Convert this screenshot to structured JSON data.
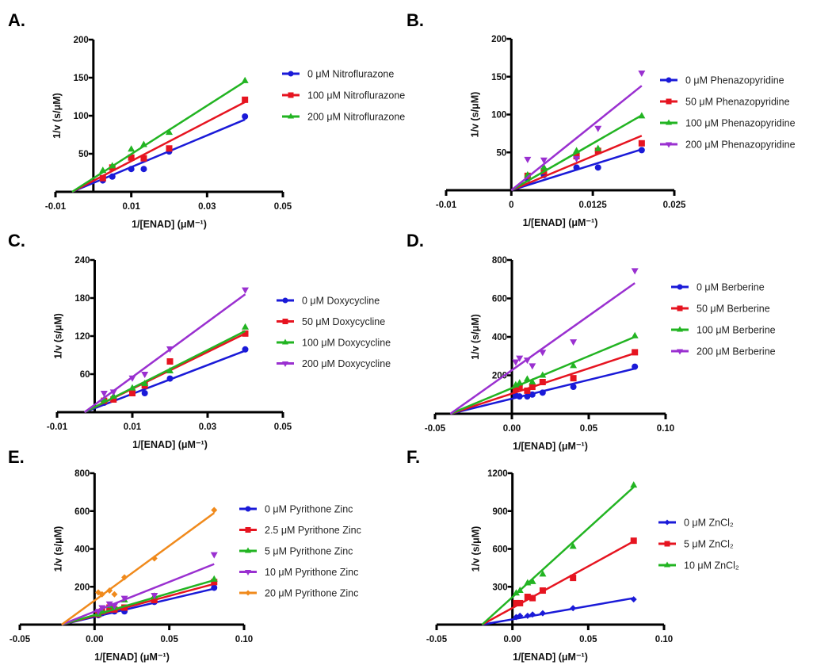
{
  "colors": {
    "blue": "#1a1ad8",
    "red": "#e61420",
    "green": "#22b422",
    "purple": "#9a30d0",
    "orange": "#f08a1c"
  },
  "chart_data": [
    {
      "type": "scatter",
      "panel_label": "A.",
      "xlabel": "1/[ENAD] (μM⁻¹)",
      "ylabel": "1/v (s/μM)",
      "xlim": [
        -0.01,
        0.05
      ],
      "ylim": [
        0,
        200
      ],
      "xticks": [
        -0.01,
        0.01,
        0.03,
        0.05
      ],
      "xtick_labels": [
        "-0.01",
        "0.01",
        "0.03",
        "0.05"
      ],
      "yticks": [
        50,
        100,
        150,
        200
      ],
      "ytick_labels": [
        "50",
        "100",
        "150",
        "200"
      ],
      "x": [
        0.0025,
        0.005,
        0.01,
        0.0133,
        0.02,
        0.04
      ],
      "series": [
        {
          "name": "0 μM Nitroflurazone",
          "color": "blue",
          "marker": "circle",
          "values": [
            15,
            20,
            30,
            30,
            53,
            99
          ],
          "fit": [
            [
              -0.0056,
              0
            ],
            [
              0.04,
              95
            ]
          ]
        },
        {
          "name": "100 μM Nitroflurazone",
          "color": "red",
          "marker": "square",
          "values": [
            18,
            32,
            45,
            44,
            57,
            121
          ],
          "fit": [
            [
              -0.0056,
              0
            ],
            [
              0.04,
              118
            ]
          ]
        },
        {
          "name": "200 μM Nitroflurazone",
          "color": "green",
          "marker": "triangle-up",
          "values": [
            28,
            34,
            56,
            62,
            78,
            146
          ],
          "fit": [
            [
              -0.0056,
              0
            ],
            [
              0.04,
              145
            ]
          ]
        }
      ]
    },
    {
      "type": "scatter",
      "panel_label": "B.",
      "xlabel": "1/[ENAD] (μM⁻¹)",
      "ylabel": "1/v (s/μM)",
      "xlim": [
        -0.01,
        0.025
      ],
      "ylim": [
        0,
        200
      ],
      "xticks": [
        -0.01,
        0,
        0.0125,
        0.025
      ],
      "xtick_labels": [
        "-0.01",
        "0",
        "0.0125",
        "0.025"
      ],
      "yticks": [
        50,
        100,
        150,
        200
      ],
      "ytick_labels": [
        "50",
        "100",
        "150",
        "200"
      ],
      "x": [
        0.0025,
        0.005,
        0.01,
        0.0133,
        0.02
      ],
      "series": [
        {
          "name": "0 μM Phenazopyridine",
          "color": "blue",
          "marker": "circle",
          "values": [
            15,
            20,
            30,
            30,
            53
          ],
          "fit": [
            [
              0,
              0
            ],
            [
              0.02,
              54
            ]
          ]
        },
        {
          "name": "50 μM Phenazopyridine",
          "color": "red",
          "marker": "square",
          "values": [
            19,
            25,
            45,
            52,
            62
          ],
          "fit": [
            [
              0,
              0
            ],
            [
              0.02,
              72
            ]
          ]
        },
        {
          "name": "100 μM Phenazopyridine",
          "color": "green",
          "marker": "triangle-up",
          "values": [
            20,
            30,
            52,
            55,
            98
          ],
          "fit": [
            [
              0,
              0
            ],
            [
              0.02,
              99
            ]
          ]
        },
        {
          "name": "200 μM Phenazopyridine",
          "color": "purple",
          "marker": "triangle-down",
          "values": [
            41,
            40,
            42,
            82,
            155
          ],
          "fit": [
            [
              0,
              0
            ],
            [
              0.02,
              138
            ]
          ]
        }
      ]
    },
    {
      "type": "scatter",
      "panel_label": "C.",
      "xlabel": "1/[ENAD] (μM⁻¹)",
      "ylabel": "1/v (s/μM)",
      "xlim": [
        -0.01,
        0.05
      ],
      "ylim": [
        0,
        240
      ],
      "xticks": [
        -0.01,
        0.01,
        0.03,
        0.05
      ],
      "xtick_labels": [
        "-0.01",
        "0.01",
        "0.03",
        "0.05"
      ],
      "yticks": [
        60,
        120,
        180,
        240
      ],
      "ytick_labels": [
        "60",
        "120",
        "180",
        "240"
      ],
      "x": [
        0.0025,
        0.005,
        0.01,
        0.0133,
        0.02,
        0.04
      ],
      "series": [
        {
          "name": "0 μM Doxycycline",
          "color": "blue",
          "marker": "circle",
          "values": [
            15,
            22,
            30,
            30,
            53,
            99
          ],
          "fit": [
            [
              -0.0027,
              0
            ],
            [
              0.04,
              97
            ]
          ]
        },
        {
          "name": "50 μM Doxycycline",
          "color": "red",
          "marker": "square",
          "values": [
            18,
            20,
            30,
            42,
            80,
            124
          ],
          "fit": [
            [
              -0.0027,
              0
            ],
            [
              0.04,
              124
            ]
          ]
        },
        {
          "name": "100 μM Doxycycline",
          "color": "green",
          "marker": "triangle-up",
          "values": [
            20,
            25,
            38,
            45,
            65,
            134
          ],
          "fit": [
            [
              -0.0027,
              0
            ],
            [
              0.04,
              128
            ]
          ]
        },
        {
          "name": "200 μM Doxycycline",
          "color": "purple",
          "marker": "triangle-down",
          "values": [
            30,
            32,
            54,
            60,
            100,
            193
          ],
          "fit": [
            [
              -0.0027,
              0
            ],
            [
              0.04,
              186
            ]
          ]
        }
      ]
    },
    {
      "type": "scatter",
      "panel_label": "D.",
      "xlabel": "1/[ENAD] (μM⁻¹)",
      "ylabel": "1/v (s/μM)",
      "xlim": [
        -0.05,
        0.1
      ],
      "ylim": [
        0,
        800
      ],
      "xticks": [
        -0.05,
        0,
        0.05,
        0.1
      ],
      "xtick_labels": [
        "-0.05",
        "0.00",
        "0.05",
        "0.10"
      ],
      "yticks": [
        200,
        400,
        600,
        800
      ],
      "ytick_labels": [
        "200",
        "400",
        "600",
        "800"
      ],
      "x": [
        0.0025,
        0.005,
        0.01,
        0.0133,
        0.02,
        0.04,
        0.08
      ],
      "series": [
        {
          "name": "0 μM Berberine",
          "color": "blue",
          "marker": "circle",
          "values": [
            95,
            90,
            90,
            100,
            110,
            140,
            245
          ],
          "fit": [
            [
              -0.04,
              0
            ],
            [
              0.08,
              235
            ]
          ]
        },
        {
          "name": "50 μM Berberine",
          "color": "red",
          "marker": "square",
          "values": [
            130,
            140,
            120,
            140,
            165,
            185,
            320
          ],
          "fit": [
            [
              -0.04,
              0
            ],
            [
              0.08,
              315
            ]
          ]
        },
        {
          "name": "100 μM Berberine",
          "color": "green",
          "marker": "triangle-up",
          "values": [
            150,
            160,
            180,
            165,
            200,
            250,
            405
          ],
          "fit": [
            [
              -0.04,
              0
            ],
            [
              0.08,
              400
            ]
          ]
        },
        {
          "name": "200 μM Berberine",
          "color": "purple",
          "marker": "triangle-down",
          "values": [
            270,
            290,
            280,
            250,
            320,
            375,
            745
          ],
          "fit": [
            [
              -0.04,
              0
            ],
            [
              0.08,
              680
            ]
          ]
        }
      ]
    },
    {
      "type": "scatter",
      "panel_label": "E.",
      "xlabel": "1/[ENAD] (μM⁻¹)",
      "ylabel": "1/v (s/μM)",
      "xlim": [
        -0.05,
        0.1
      ],
      "ylim": [
        0,
        800
      ],
      "xticks": [
        -0.05,
        0,
        0.05,
        0.1
      ],
      "xtick_labels": [
        "-0.05",
        "0.00",
        "0.05",
        "0.10"
      ],
      "yticks": [
        200,
        400,
        600,
        800
      ],
      "ytick_labels": [
        "200",
        "400",
        "600",
        "800"
      ],
      "x": [
        0.0025,
        0.005,
        0.01,
        0.0133,
        0.02,
        0.04,
        0.08
      ],
      "series": [
        {
          "name": "0 μM Pyrithone Zinc",
          "color": "blue",
          "marker": "circle",
          "values": [
            50,
            60,
            80,
            70,
            70,
            120,
            195
          ],
          "fit": [
            [
              -0.022,
              0
            ],
            [
              0.08,
              190
            ]
          ]
        },
        {
          "name": "2.5 μM Pyrithone Zinc",
          "color": "red",
          "marker": "square",
          "values": [
            55,
            70,
            90,
            80,
            90,
            130,
            225
          ],
          "fit": [
            [
              -0.022,
              0
            ],
            [
              0.08,
              215
            ]
          ]
        },
        {
          "name": "5 μM Pyrithone Zinc",
          "color": "green",
          "marker": "triangle-up",
          "values": [
            55,
            70,
            100,
            90,
            130,
            150,
            240
          ],
          "fit": [
            [
              -0.022,
              0
            ],
            [
              0.08,
              235
            ]
          ]
        },
        {
          "name": "10 μM Pyrithone Zinc",
          "color": "purple",
          "marker": "triangle-down",
          "values": [
            70,
            90,
            110,
            100,
            140,
            155,
            370
          ],
          "fit": [
            [
              -0.022,
              0
            ],
            [
              0.08,
              320
            ]
          ]
        },
        {
          "name": "20 μM Pyrithone Zinc",
          "color": "orange",
          "marker": "diamond",
          "values": [
            170,
            160,
            180,
            160,
            250,
            350,
            605
          ],
          "fit": [
            [
              -0.022,
              0
            ],
            [
              0.08,
              590
            ]
          ]
        }
      ]
    },
    {
      "type": "scatter",
      "panel_label": "F.",
      "xlabel": "1/[ENAD] (μM⁻¹)",
      "ylabel": "1/v (s/μM)",
      "xlim": [
        -0.05,
        0.1
      ],
      "ylim": [
        0,
        1200
      ],
      "xticks": [
        -0.05,
        0,
        0.05,
        0.1
      ],
      "xtick_labels": [
        "-0.05",
        "0.00",
        "0.05",
        "0.10"
      ],
      "yticks": [
        300,
        600,
        900,
        1200
      ],
      "ytick_labels": [
        "300",
        "600",
        "900",
        "1200"
      ],
      "x": [
        0.0025,
        0.005,
        0.01,
        0.0133,
        0.02,
        0.04,
        0.08
      ],
      "series": [
        {
          "name": "0 μM ZnCl₂",
          "color": "blue",
          "marker": "diamond",
          "values": [
            60,
            70,
            70,
            80,
            90,
            130,
            200
          ],
          "fit": [
            [
              -0.02,
              0
            ],
            [
              0.08,
              210
            ]
          ]
        },
        {
          "name": "5 μM ZnCl₂",
          "color": "red",
          "marker": "square",
          "values": [
            170,
            170,
            220,
            210,
            270,
            370,
            665
          ],
          "fit": [
            [
              -0.02,
              0
            ],
            [
              0.08,
              660
            ]
          ]
        },
        {
          "name": "10 μM ZnCl₂",
          "color": "green",
          "marker": "triangle-up",
          "values": [
            250,
            270,
            330,
            340,
            400,
            620,
            1105
          ],
          "fit": [
            [
              -0.02,
              0
            ],
            [
              0.08,
              1090
            ]
          ]
        }
      ]
    }
  ]
}
